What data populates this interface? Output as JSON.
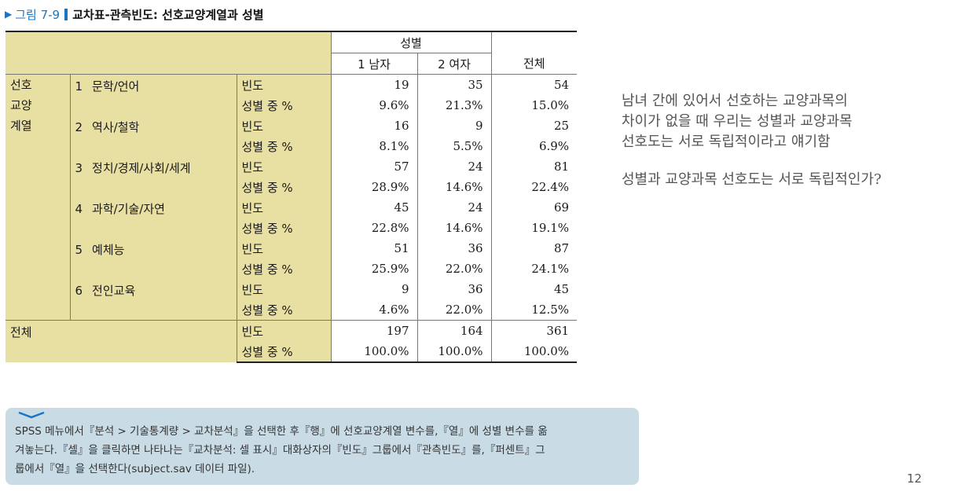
{
  "figure": {
    "number": "그림 7-9",
    "title": "교차표-관측빈도: 선호교양계열과 성별"
  },
  "table": {
    "gender_header": "성별",
    "col_headers": [
      "1  남자",
      "2  여자",
      "전체"
    ],
    "row_group_label_lines": [
      "선호",
      "교양",
      "계열"
    ],
    "freq_label": "빈도",
    "pct_label": "성별 중 %",
    "categories": [
      {
        "code": "1",
        "name": "문학/언어",
        "freq": [
          "19",
          "35",
          "54"
        ],
        "pct": [
          "9.6%",
          "21.3%",
          "15.0%"
        ]
      },
      {
        "code": "2",
        "name": "역사/철학",
        "freq": [
          "16",
          "9",
          "25"
        ],
        "pct": [
          "8.1%",
          "5.5%",
          "6.9%"
        ]
      },
      {
        "code": "3",
        "name": "정치/경제/사회/세계",
        "freq": [
          "57",
          "24",
          "81"
        ],
        "pct": [
          "28.9%",
          "14.6%",
          "22.4%"
        ]
      },
      {
        "code": "4",
        "name": "과학/기술/자연",
        "freq": [
          "45",
          "24",
          "69"
        ],
        "pct": [
          "22.8%",
          "14.6%",
          "19.1%"
        ]
      },
      {
        "code": "5",
        "name": "예체능",
        "freq": [
          "51",
          "36",
          "87"
        ],
        "pct": [
          "25.9%",
          "22.0%",
          "24.1%"
        ]
      },
      {
        "code": "6",
        "name": "전인교육",
        "freq": [
          "9",
          "36",
          "45"
        ],
        "pct": [
          "4.6%",
          "22.0%",
          "12.5%"
        ]
      }
    ],
    "total": {
      "label": "전체",
      "freq": [
        "197",
        "164",
        "361"
      ],
      "pct": [
        "100.0%",
        "100.0%",
        "100.0%"
      ]
    }
  },
  "side_note": {
    "lines": [
      "남녀 간에 있어서 선호하는 교양과목의",
      "차이가 없을 때 우리는 성별과 교양과목",
      "선호도는 서로 독립적이라고 얘기함"
    ],
    "question": "성별과 교양과목 선호도는 서로 독립적인가?"
  },
  "spss_note": {
    "lines": [
      "SPSS 메뉴에서『분석 > 기술통계량 > 교차분석』을 선택한 후『행』에 선호교양계열 변수를,『열』에 성별 변수를 옮",
      "겨놓는다.『셀』을 클릭하면 나타나는『교차분석: 셀 표시』대화상자의『빈도』그룹에서『관측빈도』를,『퍼센트』그",
      "룹에서『열』을 선택한다(subject.sav 데이터 파일)."
    ]
  },
  "page_number": "12",
  "colors": {
    "accent": "#1a74c4",
    "label_fill": "#e8dfa3",
    "note_box": "#c9dce6"
  }
}
